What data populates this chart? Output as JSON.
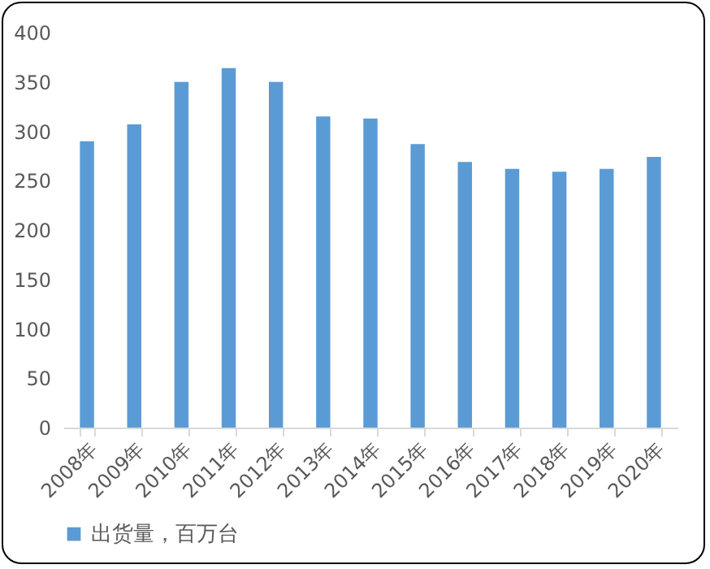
{
  "chart_data": {
    "type": "bar",
    "categories": [
      "2008年",
      "2009年",
      "2010年",
      "2011年",
      "2012年",
      "2013年",
      "2014年",
      "2015年",
      "2016年",
      "2017年",
      "2018年",
      "2019年",
      "2020年"
    ],
    "series": [
      {
        "name": "出货量，百万台",
        "color": "#5b9bd5",
        "values": [
          290,
          307,
          350,
          364,
          350,
          315,
          313,
          287,
          269,
          262,
          259,
          262,
          274
        ]
      }
    ],
    "ylim": [
      0,
      400
    ],
    "yticks": [
      0,
      50,
      100,
      150,
      200,
      250,
      300,
      350,
      400
    ],
    "grid": false,
    "legend": "bottom"
  }
}
